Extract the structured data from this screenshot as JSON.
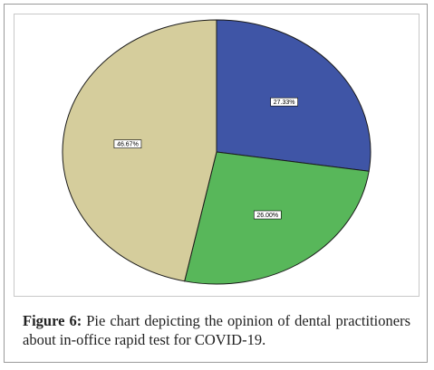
{
  "caption": {
    "label": "Figure 6:",
    "text": " Pie chart depicting the opinion of dental practitioners about in-office rapid test for COVID-19."
  },
  "chart_data": {
    "type": "pie",
    "title": "",
    "start_angle_deg": 0,
    "direction": "clockwise",
    "slices": [
      {
        "value": 27.33,
        "label": "27.33%",
        "color": "#3f55a6"
      },
      {
        "value": 26.0,
        "label": "26.00%",
        "color": "#58b75a"
      },
      {
        "value": 46.67,
        "label": "46.67%",
        "color": "#d5cd9c"
      }
    ],
    "stroke_color": "#1a1a1a"
  }
}
